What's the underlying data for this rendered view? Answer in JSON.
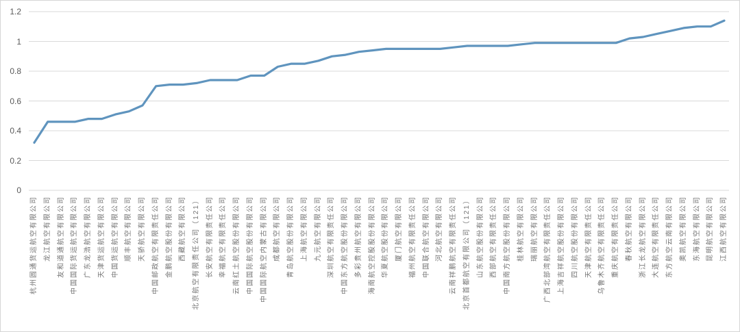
{
  "chart_data": {
    "type": "line",
    "title": "",
    "xlabel": "",
    "ylabel": "",
    "ylim": [
      0,
      1.2
    ],
    "yticks": [
      0,
      0.2,
      0.4,
      0.6,
      0.8,
      1,
      1.2
    ],
    "ytick_labels": [
      "0",
      "0.2",
      "0.4",
      "0.6",
      "0.8",
      "1",
      "1.2"
    ],
    "grid": "horizontal",
    "legend": "none",
    "categories": [
      "杭州圆通货运航空有限公司",
      "龙江航空有限公司",
      "友和道通航空有限公司",
      "中国国际货运航空有限公司",
      "广东龙浩航空有限公司",
      "天津货运航空有限公司",
      "中国货运航空有限公司",
      "顺丰航空有限公司",
      "天骄航空有限公司",
      "中国邮政航空有限责任公司",
      "金鹏航空股份有限公司",
      "西藏航空有限公司",
      "北京航空有限责任公司（121）",
      "长安航空有限责任公司",
      "幸福航空有限责任公司",
      "云南红土航空股份有限公司",
      "中国国际航空股份有限公司",
      "中国国际航空内蒙古有限公司",
      "成都航空有限公司",
      "青岛航空股份有限公司",
      "上海航空有限公司",
      "九元航空有限公司",
      "深圳航空有限责任公司",
      "中国东方航空股份有限公司",
      "多彩贵州航空有限公司",
      "海南航空控股股份有限公司",
      "华夏航空股份有限公司",
      "厦门航空有限公司",
      "福州航空有限责任公司",
      "中国联合航空有限公司",
      "河北航空有限公司",
      "云南祥鹏航空有限责任公司",
      "北京首都航空有限公司（121）",
      "山东航空股份有限公司",
      "西部航空有限责任公司",
      "中国南方航空股份有限公司",
      "桂林航空有限公司",
      "瑞丽航空有限公司",
      "广西北部湾航空有限责任公司",
      "上海吉祥航空股份有限公司",
      "四川航空股份有限公司",
      "天津航空有限责任公司",
      "乌鲁木齐航空有限责任公司",
      "重庆航空有限责任公司",
      "春秋航空有限公司",
      "浙江长龙航空有限公司",
      "大连航空有限责任公司",
      "东方航空云南有限公司",
      "奥凯航空有限公司",
      "东海航空有限公司",
      "昆明航空有限公司",
      "江西航空有限公司"
    ],
    "values": [
      0.32,
      0.46,
      0.46,
      0.46,
      0.48,
      0.48,
      0.51,
      0.53,
      0.57,
      0.7,
      0.71,
      0.71,
      0.72,
      0.74,
      0.74,
      0.74,
      0.77,
      0.77,
      0.83,
      0.85,
      0.85,
      0.87,
      0.9,
      0.91,
      0.93,
      0.94,
      0.95,
      0.95,
      0.95,
      0.95,
      0.95,
      0.96,
      0.97,
      0.97,
      0.97,
      0.97,
      0.98,
      0.99,
      0.99,
      0.99,
      0.99,
      0.99,
      0.99,
      0.99,
      1.02,
      1.03,
      1.05,
      1.07,
      1.09,
      1.1,
      1.1,
      1.14
    ]
  },
  "colors": {
    "line": "#5f94be",
    "grid": "#d9d9d9",
    "y_axis_text": "#595959",
    "x_axis_text": "#747474",
    "background": "#ffffff",
    "frame_border": "#d6d6d6"
  }
}
